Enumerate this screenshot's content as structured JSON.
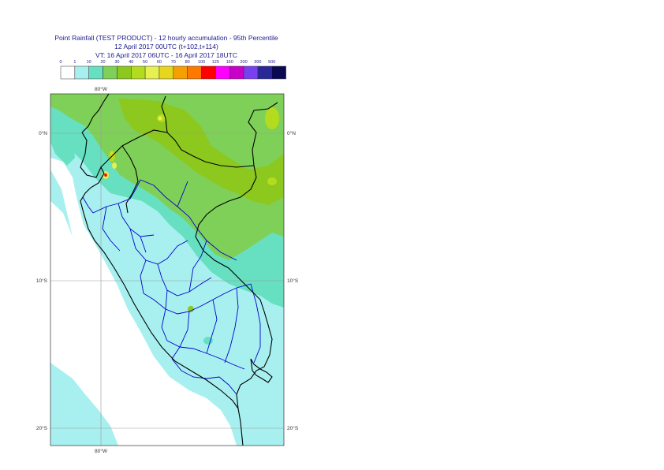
{
  "header": {
    "line1": "Point Rainfall (TEST PRODUCT) - 12 hourly accumulation - 95th Percentile",
    "line2": "12 April 2017 00UTC (t+102,t+114)",
    "line3": "VT: 16 April 2017 06UTC - 16 April 2017 18UTC"
  },
  "legend": {
    "ticks": [
      "0",
      "1",
      "10",
      "20",
      "30",
      "40",
      "50",
      "60",
      "70",
      "80",
      "100",
      "125",
      "150",
      "200",
      "300",
      "500"
    ],
    "colors": [
      "#ffffff",
      "#a8f0f0",
      "#66e0c0",
      "#7fd058",
      "#8cc81e",
      "#b4dc1e",
      "#e6f050",
      "#e6d71e",
      "#f5a000",
      "#ff7800",
      "#ff0000",
      "#ff00ff",
      "#c800c8",
      "#7840f0",
      "#282896",
      "#0a0a50"
    ]
  },
  "map": {
    "lon_labels": [
      "80°W",
      "80°W"
    ],
    "lat_labels": [
      "0°N",
      "0°N",
      "10°S",
      "10°S",
      "20°S",
      "20°S"
    ],
    "colors": {
      "ocean": "#ffffff",
      "light_cyan": "#a8f0f0",
      "teal": "#66e0c0",
      "green": "#7fd058",
      "bright_green": "#8cc81e",
      "yellow_green": "#b4dc1e",
      "yellow": "#e6f050",
      "red": "#ff0000",
      "coast": "#000000",
      "admin_boundary": "#0000cc",
      "grid": "#999999"
    }
  }
}
